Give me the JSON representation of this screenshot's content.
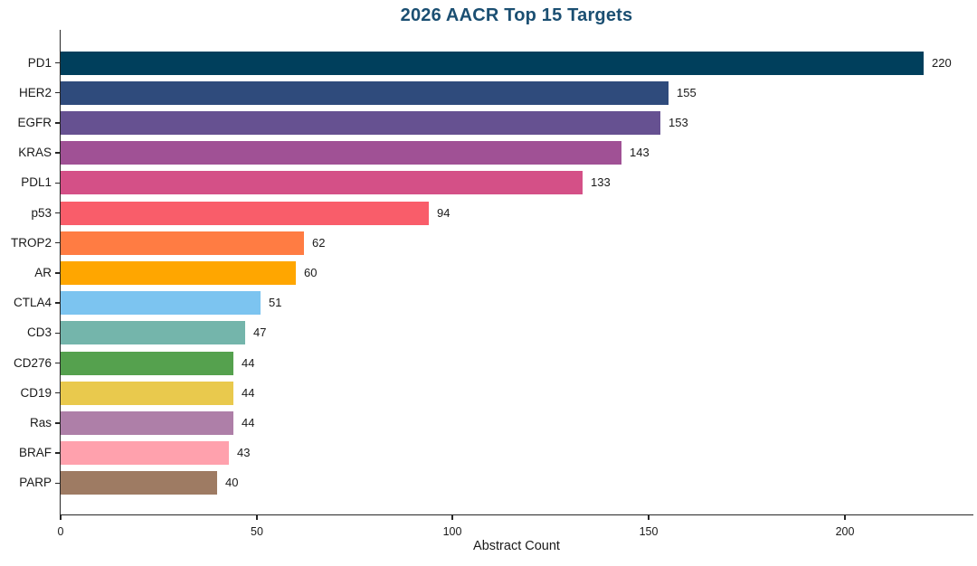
{
  "chart_data": {
    "type": "bar",
    "orientation": "horizontal",
    "title": "2026 AACR Top 15 Targets",
    "xlabel": "Abstract Count",
    "ylabel": "",
    "categories": [
      "PD1",
      "HER2",
      "EGFR",
      "KRAS",
      "PDL1",
      "p53",
      "TROP2",
      "AR",
      "CTLA4",
      "CD3",
      "CD276",
      "CD19",
      "Ras",
      "BRAF",
      "PARP"
    ],
    "values": [
      220,
      155,
      153,
      143,
      133,
      94,
      62,
      60,
      51,
      47,
      44,
      44,
      44,
      43,
      40
    ],
    "bar_colors": [
      "#003f5c",
      "#2f4b7c",
      "#665191",
      "#a05195",
      "#d45087",
      "#f95d6a",
      "#ff7c43",
      "#ffa600",
      "#7cc4f0",
      "#74b5ab",
      "#55a14e",
      "#e9c94d",
      "#ae7fa8",
      "#ffa1ad",
      "#9e7b63"
    ],
    "xticks": [
      0,
      50,
      100,
      150,
      200
    ],
    "xlim": [
      0,
      233
    ],
    "grid": false,
    "value_labels_shown": true,
    "legend": "none",
    "title_color": "#1b4f72",
    "axis_color": "#262626"
  }
}
